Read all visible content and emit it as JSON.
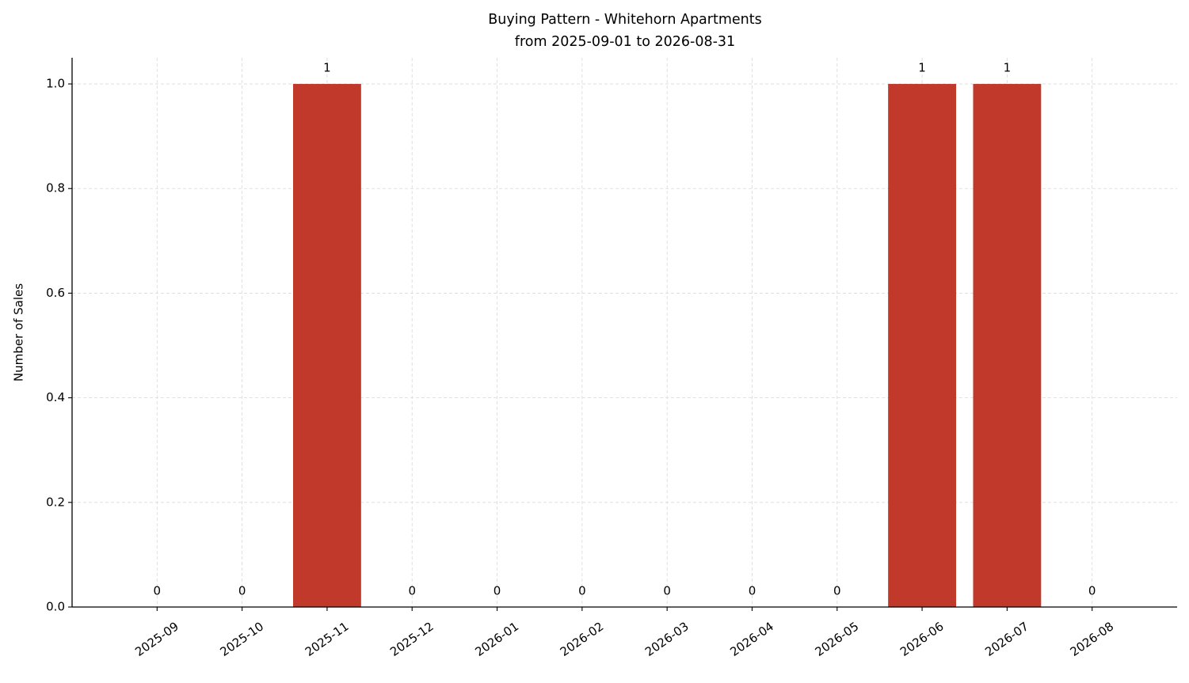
{
  "chart_data": {
    "type": "bar",
    "title": "Buying Pattern - Whitehorn Apartments",
    "subtitle": "from 2025-09-01 to 2026-08-31",
    "y_label": "Number of Sales",
    "categories": [
      "2025-09",
      "2025-10",
      "2025-11",
      "2025-12",
      "2026-01",
      "2026-02",
      "2026-03",
      "2026-04",
      "2026-05",
      "2026-06",
      "2026-07",
      "2026-08"
    ],
    "values": [
      0,
      0,
      1,
      0,
      0,
      0,
      0,
      0,
      0,
      1,
      1,
      0
    ],
    "color": "#c0392b",
    "ylim": [
      0,
      1.05
    ],
    "yticks": [
      {
        "value": 0,
        "label": "0.0"
      },
      0.2,
      0.4,
      0.6,
      0.8,
      {
        "value": 1,
        "label": "1.0"
      }
    ],
    "grid": true
  }
}
